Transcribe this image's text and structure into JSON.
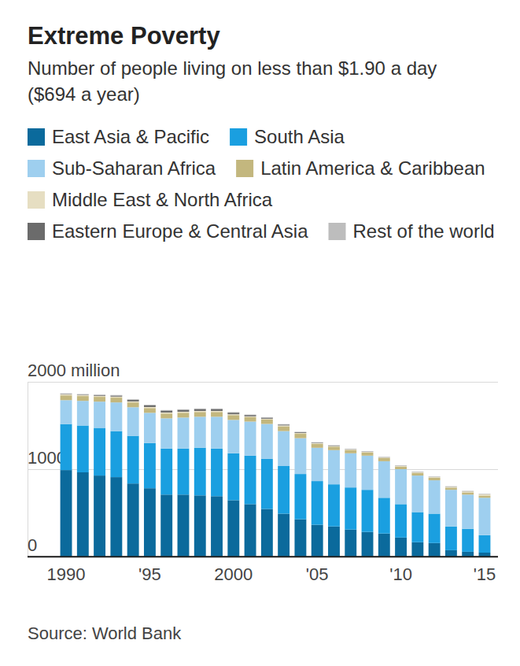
{
  "chart_data": {
    "type": "bar",
    "stacked": true,
    "title": "Extreme Poverty",
    "subtitle": "Number of people living on less than $1.90 a day ($694 a year)",
    "source": "Source: World Bank",
    "grid": true,
    "legend": "top left",
    "categories": [
      "1990",
      null,
      null,
      null,
      null,
      "'95",
      null,
      null,
      null,
      null,
      "2000",
      null,
      null,
      null,
      null,
      "'05",
      null,
      null,
      null,
      null,
      "'10",
      null,
      null,
      null,
      null,
      "'15"
    ],
    "ylim": [
      0,
      2000
    ],
    "yticks": [
      0,
      1000,
      {
        "value": 2000,
        "label": "2000 million"
      }
    ],
    "series": [
      {
        "name": "East Asia & Pacific",
        "color": "#0b6a9c",
        "values": [
          990,
          964,
          927,
          909,
          836,
          782,
          709,
          709,
          700,
          691,
          645,
          600,
          545,
          491,
          427,
          364,
          345,
          309,
          282,
          264,
          218,
          164,
          155,
          73,
          55,
          45
        ]
      },
      {
        "name": "South Asia",
        "color": "#1a9fe0",
        "values": [
          527,
          536,
          546,
          527,
          546,
          518,
          527,
          527,
          545,
          545,
          537,
          555,
          573,
          545,
          518,
          500,
          482,
          482,
          482,
          409,
          382,
          345,
          336,
          272,
          263,
          200
        ]
      },
      {
        "name": "Sub-Saharan Africa",
        "color": "#9ecfef",
        "values": [
          273,
          282,
          300,
          328,
          327,
          345,
          346,
          355,
          355,
          364,
          382,
          390,
          400,
          400,
          410,
          381,
          391,
          391,
          391,
          418,
          400,
          418,
          382,
          419,
          391,
          428
        ]
      },
      {
        "name": "Latin America & Caribbean",
        "color": "#c3b77e",
        "values": [
          55,
          55,
          55,
          55,
          55,
          55,
          55,
          55,
          55,
          55,
          55,
          50,
          50,
          55,
          50,
          45,
          40,
          35,
          35,
          35,
          30,
          30,
          30,
          25,
          25,
          25
        ]
      },
      {
        "name": "Middle East & North Africa",
        "color": "#e6dec2",
        "values": [
          12,
          12,
          12,
          12,
          12,
          12,
          12,
          12,
          12,
          12,
          10,
          10,
          10,
          10,
          10,
          8,
          8,
          8,
          8,
          8,
          8,
          8,
          8,
          10,
          12,
          14
        ]
      },
      {
        "name": "Eastern Europe & Central Asia",
        "color": "#6b6b6b",
        "values": [
          5,
          5,
          8,
          12,
          18,
          20,
          22,
          22,
          22,
          22,
          18,
          15,
          12,
          10,
          8,
          6,
          5,
          4,
          4,
          3,
          3,
          3,
          2,
          2,
          2,
          2
        ]
      },
      {
        "name": "Rest of the world",
        "color": "#bdbdbd",
        "values": [
          6,
          6,
          6,
          6,
          6,
          6,
          6,
          6,
          6,
          6,
          6,
          5,
          5,
          5,
          5,
          5,
          4,
          4,
          4,
          4,
          4,
          4,
          4,
          4,
          4,
          4
        ]
      }
    ]
  }
}
